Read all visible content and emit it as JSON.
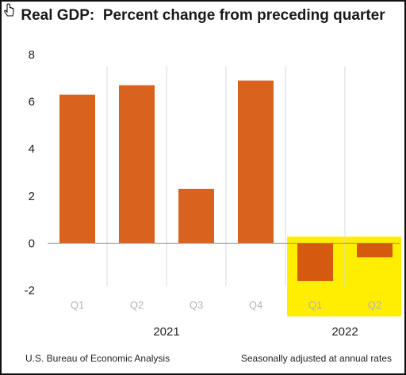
{
  "chart_data": {
    "type": "bar",
    "title": "Real GDP:  Percent change from preceding quarter",
    "categories": [
      "Q1",
      "Q2",
      "Q3",
      "Q4",
      "Q1",
      "Q2"
    ],
    "year_groups": [
      {
        "label": "2021",
        "categories": [
          "Q1",
          "Q2",
          "Q3",
          "Q4"
        ]
      },
      {
        "label": "2022",
        "categories": [
          "Q1",
          "Q2"
        ]
      }
    ],
    "values": [
      6.3,
      6.7,
      2.3,
      6.9,
      -1.6,
      -0.6
    ],
    "ylim": [
      -2,
      8
    ],
    "yticks": [
      -2,
      0,
      2,
      4,
      6,
      8
    ],
    "xlabel": "",
    "ylabel": "",
    "grid": "vertical separators",
    "highlight": {
      "categories_index": [
        4,
        5
      ],
      "color": "#ffee00"
    },
    "colors": {
      "positive_bar": "#d9621f",
      "negative_bar": "#d55a10",
      "separator": "#d8d8d8",
      "zero_line": "#8c8c8c"
    }
  },
  "footer": {
    "source": "U.S. Bureau of Economic Analysis",
    "note": "Seasonally adjusted at annual rates"
  },
  "cursor_icon": "hand-cursor-icon"
}
